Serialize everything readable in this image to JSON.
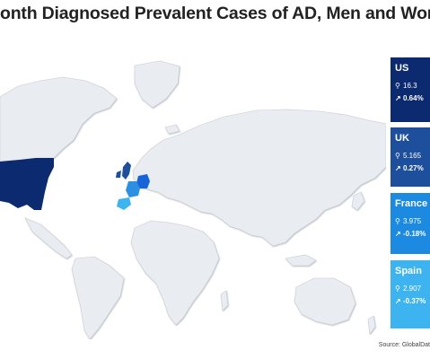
{
  "title": "onth Diagnosed Prevalent Cases of AD, Men and Wom",
  "source": "Source: GlobalDat",
  "colors": {
    "land": "#e9ecf0",
    "us": "#0b2a6f",
    "uk": "#1d4f9c",
    "germany": "#1565d8",
    "france": "#2d8fe0",
    "spain": "#3db3f0"
  },
  "panels": [
    {
      "country": "US",
      "value": "16.3",
      "change": "0.64%",
      "color": "#0b2a6f"
    },
    {
      "country": "UK",
      "value": "5.165",
      "change": "0.27%",
      "color": "#1d4f9c"
    },
    {
      "country": "France",
      "value": "3.975",
      "change": "-0.18%",
      "color": "#1b8ae0"
    },
    {
      "country": "Spain",
      "value": "2.907",
      "change": "-0.37%",
      "color": "#3db3f0"
    }
  ],
  "icons": {
    "person": "person-icon",
    "trend": "trend-icon"
  }
}
